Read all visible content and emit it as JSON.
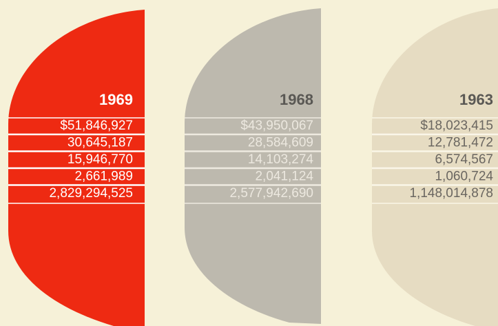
{
  "columns": [
    {
      "year": "1969",
      "rows": [
        "$51,846,927",
        "30,645,187",
        "15,946,770",
        "2,661,989",
        "2,829,294,525"
      ]
    },
    {
      "year": "1968",
      "rows": [
        "$43,950,067",
        "28,584,609",
        "14,103,274",
        "2,041,124",
        "2,577,942,690"
      ]
    },
    {
      "year": "1963",
      "rows": [
        "$18,023,415",
        "12,781,472",
        "6,574,567",
        "1,060,724",
        "1,148,014,878"
      ]
    }
  ]
}
